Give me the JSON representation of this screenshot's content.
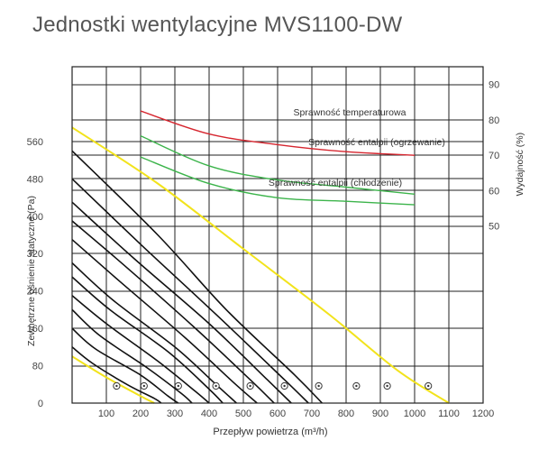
{
  "title": "Jednostki wentylacyjne MVS1100-DW",
  "chart_data": {
    "type": "line",
    "xlabel": "Przepływ powietrza (m³/h)",
    "ylabel_left": "Zewnętrzne ośnienie statyczne (Pa)",
    "ylabel_right": "Wydajność (%)",
    "xlim": [
      0,
      1200
    ],
    "x_ticks": [
      100,
      200,
      300,
      400,
      500,
      600,
      700,
      800,
      900,
      1000,
      1100,
      1200
    ],
    "ylim_left": [
      0,
      720
    ],
    "y_ticks_left": [
      0,
      80,
      160,
      240,
      320,
      400,
      480,
      560
    ],
    "ylim_right": [
      0,
      95
    ],
    "y_ticks_right": [
      50,
      60,
      70,
      80,
      90
    ],
    "grid": true,
    "pressure_curves": [
      {
        "points": [
          [
            0,
            540
          ],
          [
            250,
            360
          ],
          [
            450,
            200
          ],
          [
            650,
            60
          ],
          [
            730,
            0
          ]
        ]
      },
      {
        "points": [
          [
            0,
            480
          ],
          [
            200,
            340
          ],
          [
            420,
            190
          ],
          [
            620,
            50
          ],
          [
            690,
            0
          ]
        ]
      },
      {
        "points": [
          [
            0,
            430
          ],
          [
            180,
            310
          ],
          [
            400,
            170
          ],
          [
            570,
            50
          ],
          [
            640,
            0
          ]
        ]
      },
      {
        "points": [
          [
            0,
            390
          ],
          [
            160,
            290
          ],
          [
            360,
            160
          ],
          [
            520,
            50
          ],
          [
            590,
            0
          ]
        ]
      },
      {
        "points": [
          [
            0,
            350
          ],
          [
            140,
            260
          ],
          [
            330,
            140
          ],
          [
            470,
            45
          ],
          [
            540,
            0
          ]
        ]
      },
      {
        "points": [
          [
            0,
            300
          ],
          [
            120,
            220
          ],
          [
            300,
            120
          ],
          [
            420,
            40
          ],
          [
            480,
            0
          ]
        ]
      },
      {
        "points": [
          [
            0,
            270
          ],
          [
            110,
            200
          ],
          [
            280,
            110
          ],
          [
            400,
            30
          ],
          [
            440,
            0
          ]
        ]
      },
      {
        "points": [
          [
            0,
            230
          ],
          [
            100,
            170
          ],
          [
            250,
            90
          ],
          [
            360,
            25
          ],
          [
            400,
            0
          ]
        ]
      },
      {
        "points": [
          [
            0,
            200
          ],
          [
            80,
            145
          ],
          [
            220,
            75
          ],
          [
            320,
            20
          ],
          [
            350,
            0
          ]
        ]
      },
      {
        "points": [
          [
            0,
            160
          ],
          [
            70,
            115
          ],
          [
            200,
            60
          ],
          [
            280,
            15
          ],
          [
            310,
            0
          ]
        ]
      },
      {
        "points": [
          [
            0,
            120
          ],
          [
            60,
            85
          ],
          [
            160,
            40
          ],
          [
            240,
            10
          ],
          [
            260,
            0
          ]
        ]
      }
    ],
    "limit_curves": [
      {
        "color": "#f2e31c",
        "points": [
          [
            0,
            590
          ],
          [
            250,
            470
          ],
          [
            500,
            330
          ],
          [
            750,
            190
          ],
          [
            950,
            70
          ],
          [
            1100,
            0
          ]
        ]
      },
      {
        "color": "#f2e31c",
        "points": [
          [
            0,
            100
          ],
          [
            100,
            55
          ],
          [
            200,
            15
          ],
          [
            240,
            0
          ]
        ]
      }
    ],
    "efficiency_series": [
      {
        "name": "Sprawność temperaturowa",
        "color": "#d6262f",
        "points": [
          [
            200,
            82.5
          ],
          [
            400,
            76
          ],
          [
            600,
            73
          ],
          [
            800,
            71
          ],
          [
            1000,
            70
          ]
        ]
      },
      {
        "name": "Sprawność entalpii (ogrzewanie)",
        "color": "#3cb44b",
        "points": [
          [
            200,
            75.5
          ],
          [
            400,
            67
          ],
          [
            600,
            63
          ],
          [
            800,
            61
          ],
          [
            1000,
            59
          ]
        ]
      },
      {
        "name": "Sprawność entalpii (chłodzenie)",
        "color": "#3cb44b",
        "points": [
          [
            200,
            69.5
          ],
          [
            400,
            62
          ],
          [
            600,
            58
          ],
          [
            800,
            57
          ],
          [
            1000,
            56
          ]
        ]
      }
    ],
    "markers_x": [
      130,
      210,
      310,
      420,
      520,
      620,
      720,
      830,
      920,
      1040
    ]
  }
}
